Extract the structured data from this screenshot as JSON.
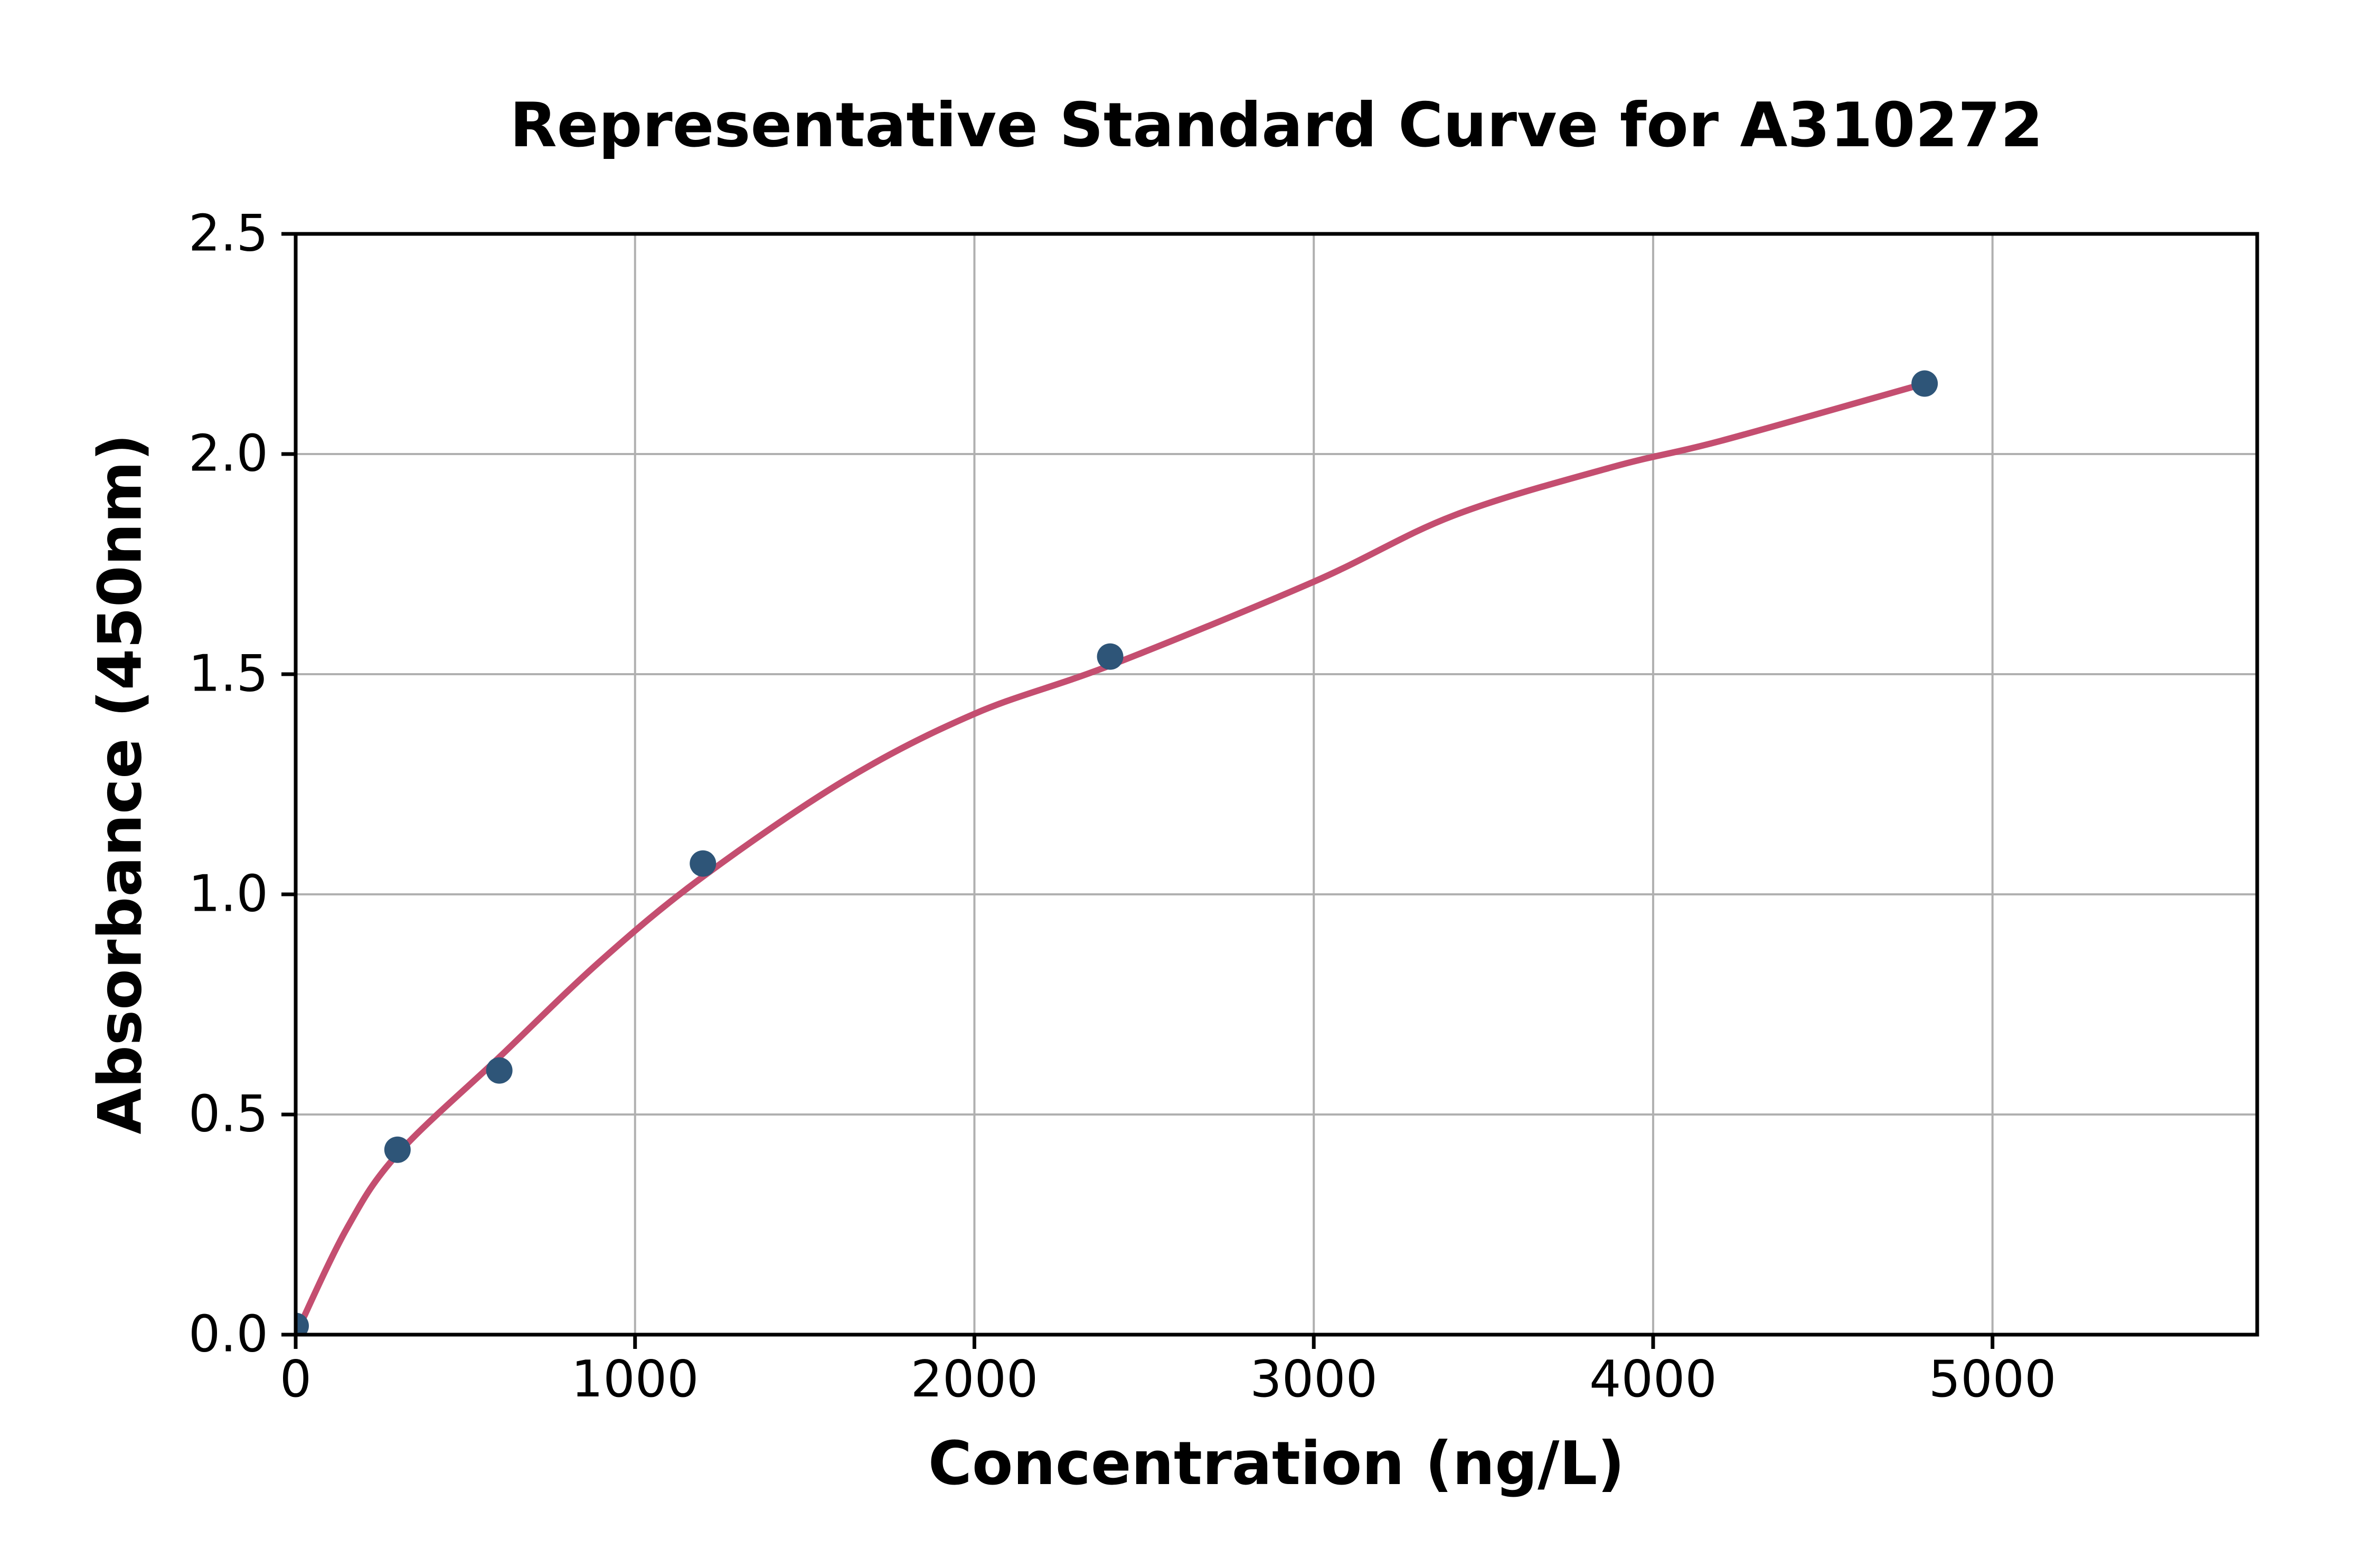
{
  "chart_data": {
    "type": "scatter",
    "title": "Representative Standard Curve for A310272",
    "xlabel": "Concentration (ng/L)",
    "ylabel": "Absorbance (450nm)",
    "xlim": [
      0,
      5780
    ],
    "ylim": [
      0,
      2.5
    ],
    "grid": true,
    "legend": false,
    "x_ticks": [
      {
        "v": 0,
        "label": "0"
      },
      {
        "v": 1000,
        "label": "1000"
      },
      {
        "v": 2000,
        "label": "2000"
      },
      {
        "v": 3000,
        "label": "3000"
      },
      {
        "v": 4000,
        "label": "4000"
      },
      {
        "v": 5000,
        "label": "5000"
      }
    ],
    "y_ticks": [
      {
        "v": 0.0,
        "label": "0.0"
      },
      {
        "v": 0.5,
        "label": "0.5"
      },
      {
        "v": 1.0,
        "label": "1.0"
      },
      {
        "v": 1.5,
        "label": "1.5"
      },
      {
        "v": 2.0,
        "label": "2.0"
      },
      {
        "v": 2.5,
        "label": "2.5"
      }
    ],
    "series": [
      {
        "name": "fit-curve",
        "kind": "line",
        "color": "#c44e70",
        "line_width": 12,
        "points": [
          [
            0,
            0.0
          ],
          [
            150,
            0.24
          ],
          [
            300,
            0.41
          ],
          [
            600,
            0.63
          ],
          [
            900,
            0.85
          ],
          [
            1200,
            1.04
          ],
          [
            1620,
            1.26
          ],
          [
            2000,
            1.41
          ],
          [
            2400,
            1.52
          ],
          [
            3000,
            1.71
          ],
          [
            3411,
            1.86
          ],
          [
            3878,
            1.97
          ],
          [
            4200,
            2.03
          ],
          [
            4800,
            2.16
          ]
        ]
      },
      {
        "name": "standard-points",
        "kind": "scatter",
        "color": "#2e5578",
        "marker_radius": 25,
        "points": [
          [
            0,
            0.02
          ],
          [
            300,
            0.42
          ],
          [
            600,
            0.6
          ],
          [
            1200,
            1.07
          ],
          [
            2400,
            1.54
          ],
          [
            4800,
            2.16
          ]
        ]
      }
    ],
    "grid_color": "#b0b0b0",
    "spine_color": "#000000"
  }
}
